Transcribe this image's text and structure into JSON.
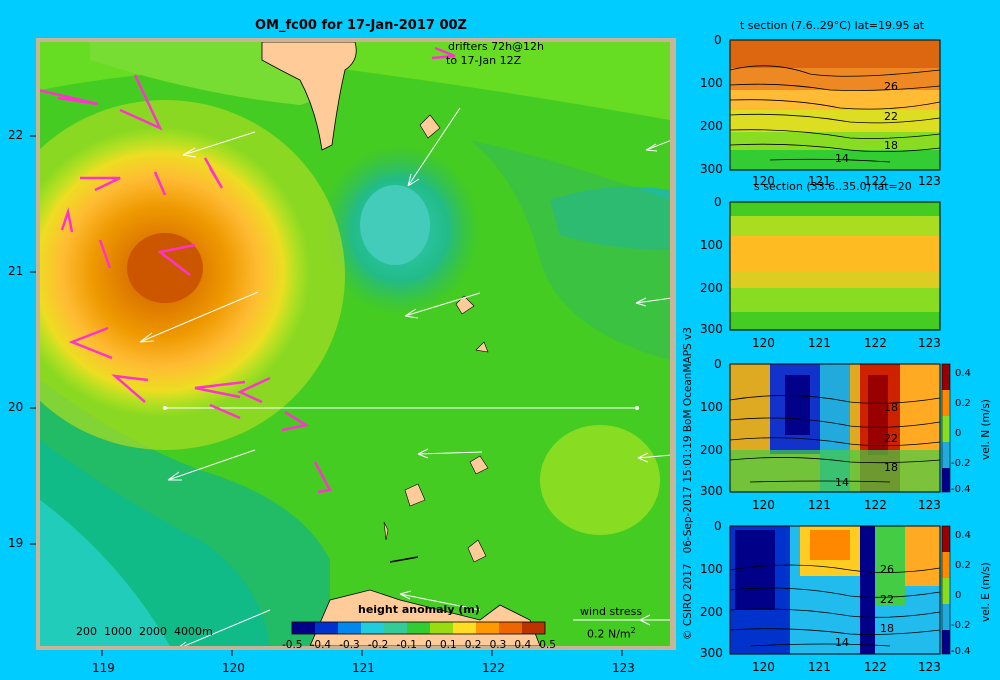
{
  "main_map": {
    "title": "OM_fc00 for 17-Jan-2017 00Z",
    "drifters_label_1": "drifters 72h@12h",
    "drifters_label_2": "to 17-Jan 12Z",
    "lon_ticks": [
      "119",
      "120",
      "121",
      "122",
      "123"
    ],
    "lat_ticks": [
      "22",
      "21",
      "20",
      "19"
    ],
    "depth_legend": "200  1000  2000  4000m",
    "colorbar_title": "height anomaly (m)",
    "colorbar_ticks": [
      "-0.5",
      "-0.4",
      "-0.3",
      "-0.2",
      "-0.1",
      "0",
      "0.1",
      "0.2",
      "0.3",
      "0.4",
      "0.5"
    ],
    "wind_stress_label": "wind stress",
    "wind_stress_scale": "0.2 N/m",
    "wind_stress_unit_sup": "2",
    "colors": {
      "land": "#ffcc99",
      "frame": "#c8b496",
      "drifter": "#ff33cc"
    }
  },
  "credit": "© CSIRO 2017   06-Sep-2017 15:01:19 BoM OceanMAPS v3",
  "sections": [
    {
      "title": "t section (7.6..29°C) lat=19.95 at",
      "depth_ticks": [
        "0",
        "100",
        "200",
        "300"
      ],
      "lon_ticks": [
        "120",
        "121",
        "122",
        "123"
      ],
      "contour_labels": [
        "26",
        "22",
        "18",
        "14"
      ]
    },
    {
      "title": "s section (33.6..35.0) lat=20",
      "depth_ticks": [
        "0",
        "100",
        "200",
        "300"
      ],
      "lon_ticks": [
        "120",
        "121",
        "122",
        "123"
      ]
    },
    {
      "title": "",
      "depth_ticks": [
        "0",
        "100",
        "200",
        "300"
      ],
      "lon_ticks": [
        "120",
        "121",
        "122",
        "123"
      ],
      "contour_labels": [
        "18",
        "22",
        "18",
        "14"
      ],
      "cbar_label": "vel. N (m/s)",
      "cbar_ticks": [
        "0.4",
        "0.2",
        "0",
        "-0.2",
        "-0.4"
      ]
    },
    {
      "title": "",
      "depth_ticks": [
        "0",
        "100",
        "200",
        "300"
      ],
      "lon_ticks": [
        "120",
        "121",
        "122",
        "123"
      ],
      "contour_labels": [
        "26",
        "22",
        "18",
        "14"
      ],
      "cbar_label": "vel. E (m/s)",
      "cbar_ticks": [
        "0.4",
        "0.2",
        "0",
        "-0.2",
        "-0.4"
      ]
    }
  ]
}
